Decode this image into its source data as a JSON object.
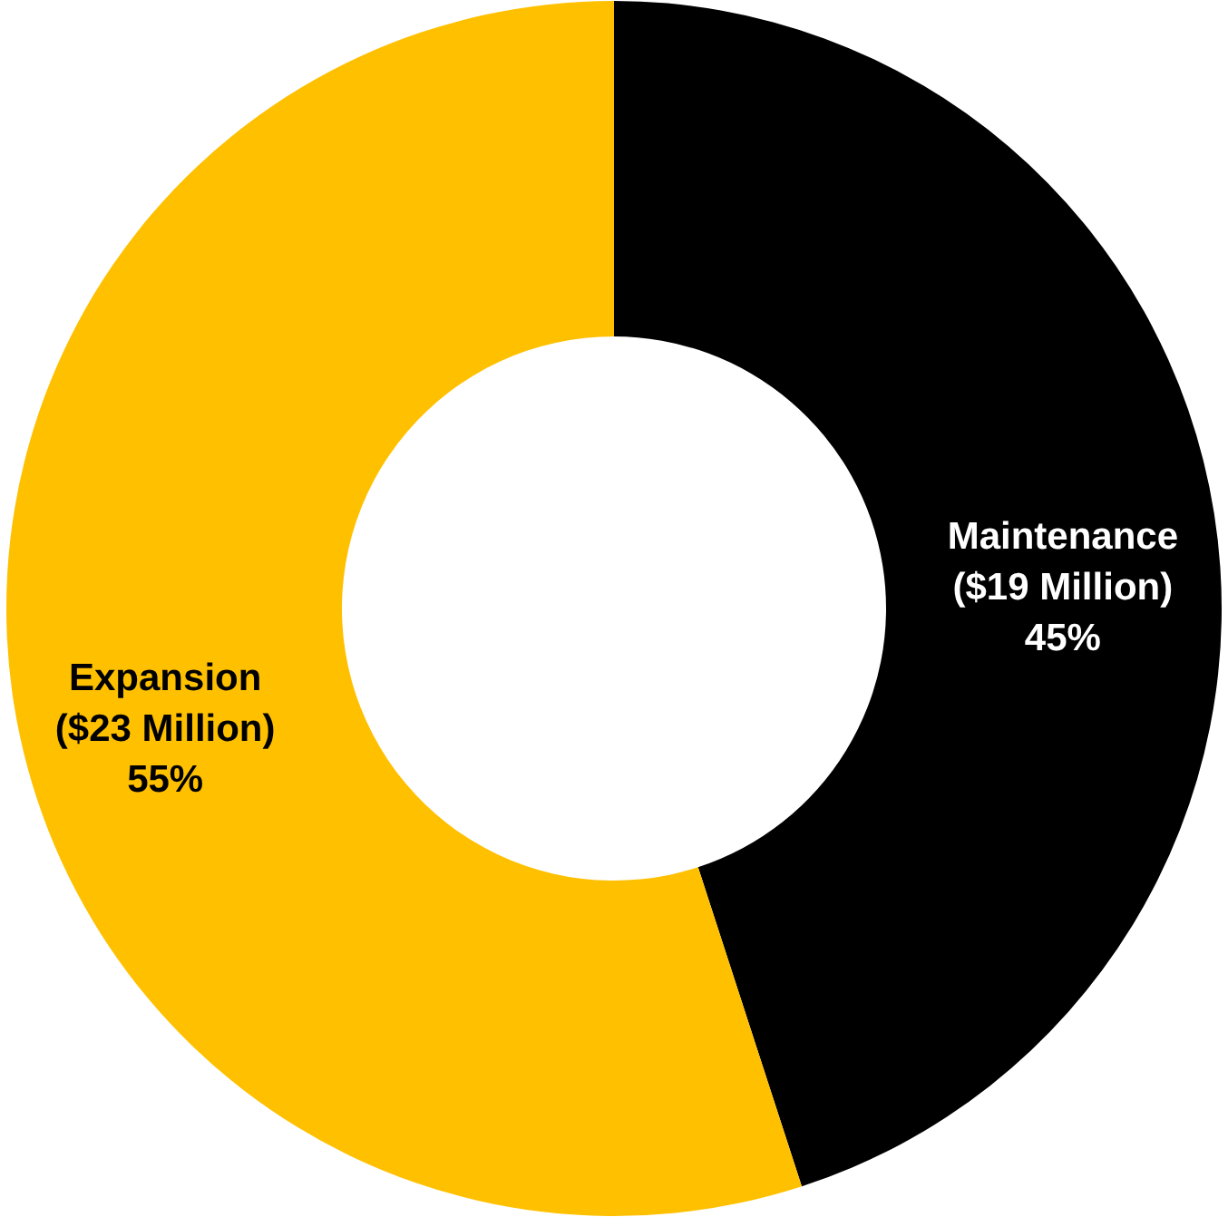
{
  "chart_data": {
    "type": "donut",
    "categories": [
      "Maintenance",
      "Expansion"
    ],
    "values": [
      45,
      55
    ],
    "value_labels": [
      "($19 Million)\n45%",
      "($23 Million)\n55%"
    ],
    "colors": [
      "#000000",
      "#ffc000"
    ]
  }
}
